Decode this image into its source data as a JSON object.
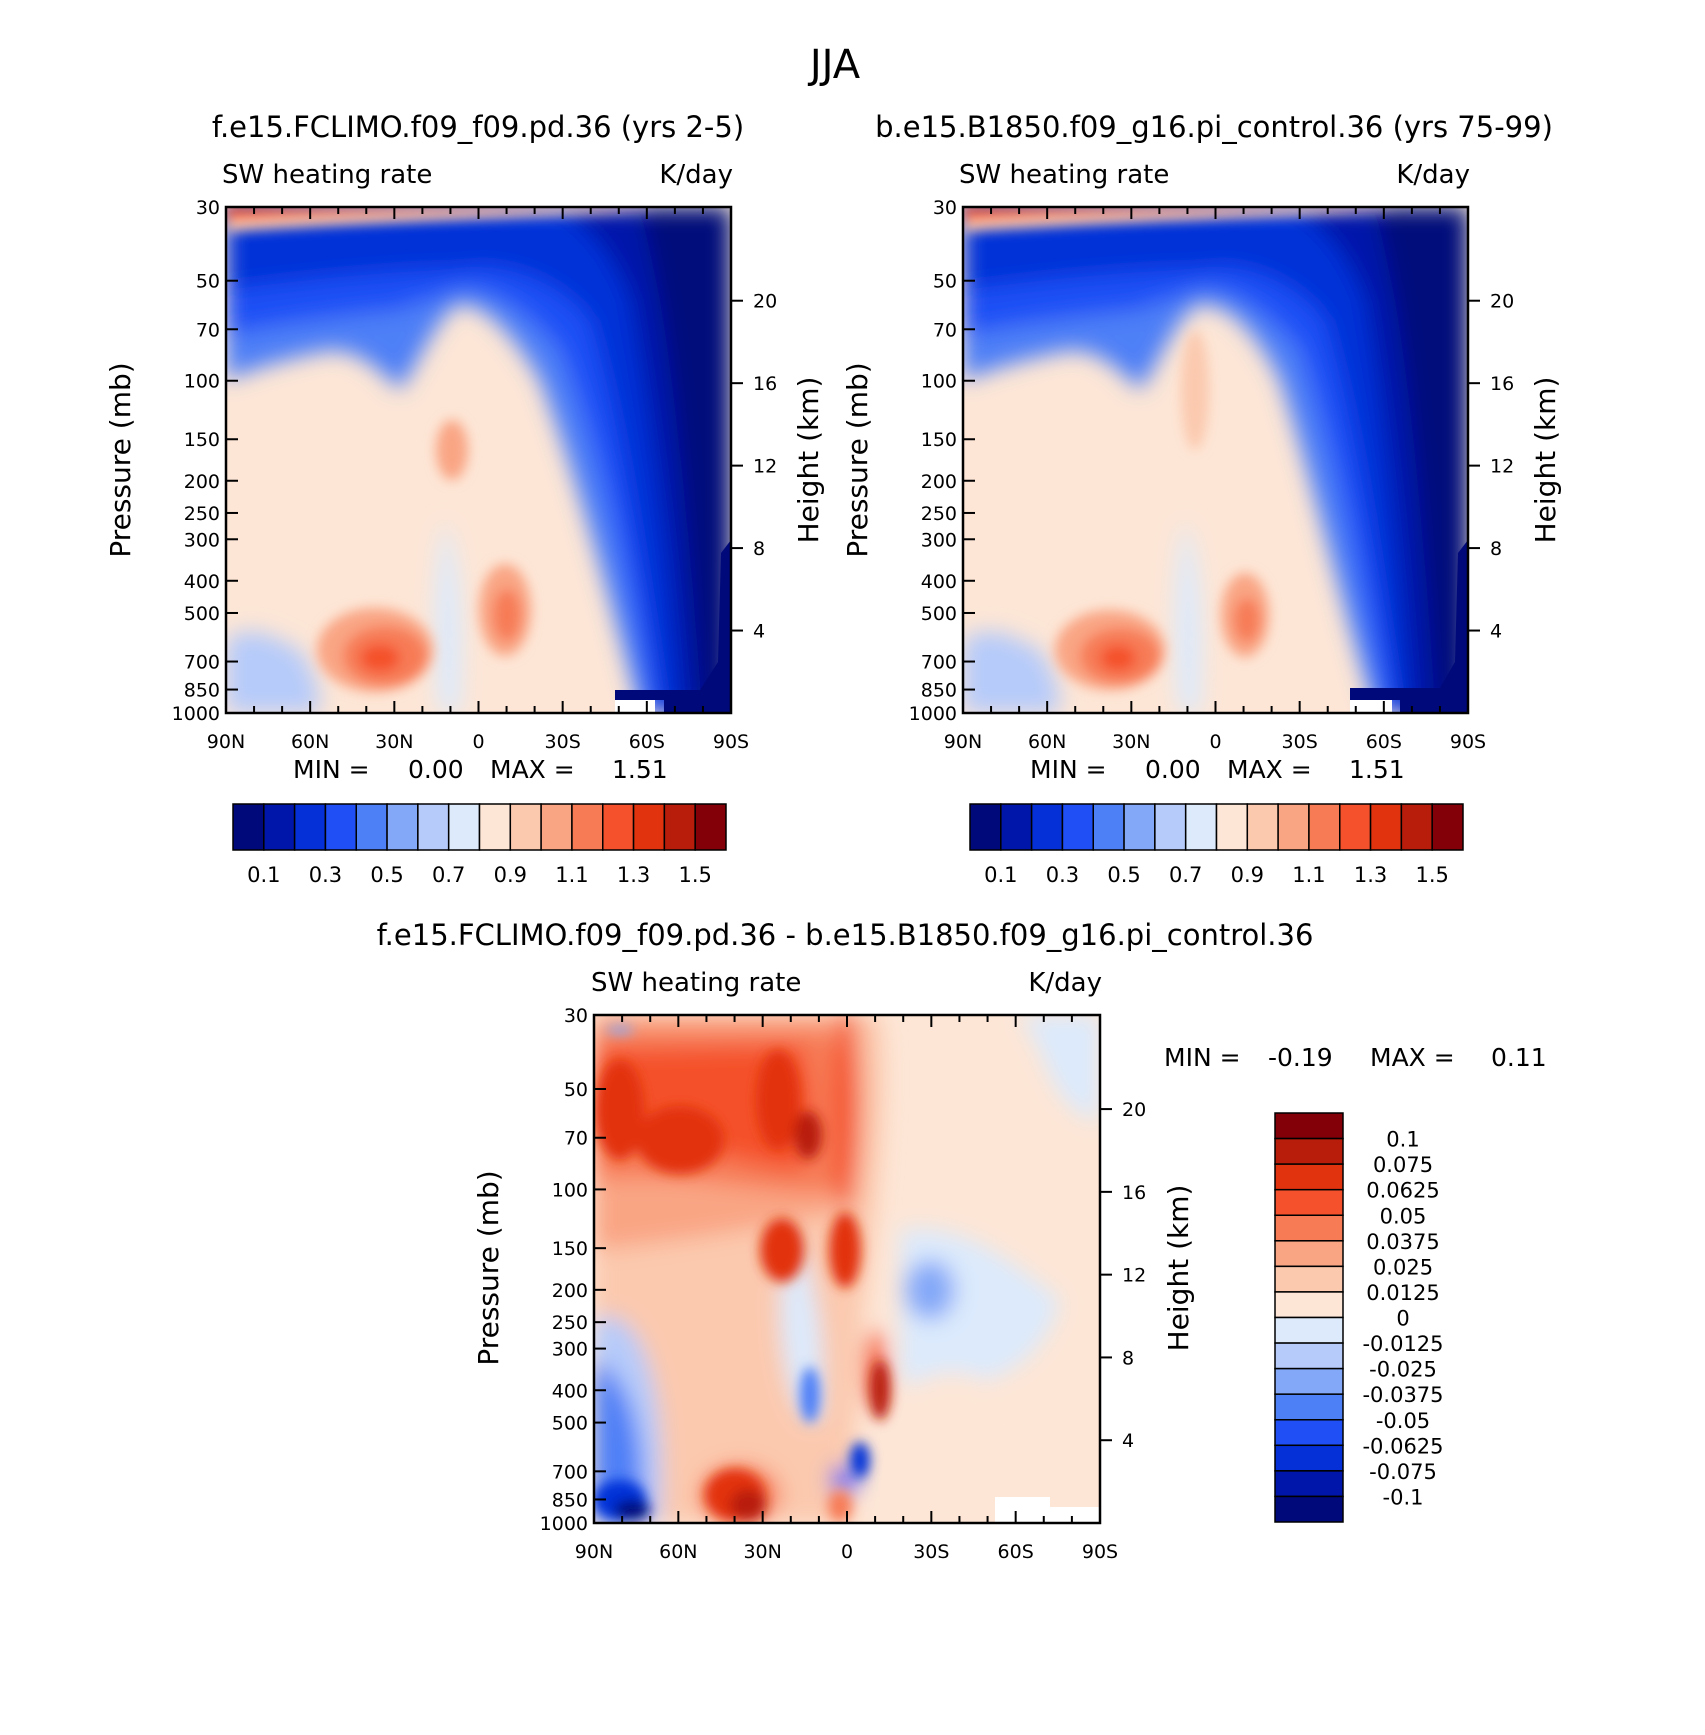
{
  "figure_title": "JJA",
  "chart_data": [
    {
      "type": "heatmap",
      "id": "p1",
      "title": "f.e15.FCLIMO.f09_f09.pd.36 (yrs 2-5)",
      "left_label": "SW heating rate",
      "right_label": "K/day",
      "xlabel": "",
      "ylabel": "Pressure (mb)",
      "y2label": "Height (km)",
      "x_ticklabels": [
        "90N",
        "60N",
        "30N",
        "0",
        "30S",
        "60S",
        "90S"
      ],
      "x_range": [
        90,
        -90
      ],
      "y_ticklabels": [
        "30",
        "50",
        "70",
        "100",
        "150",
        "200",
        "250",
        "300",
        "400",
        "500",
        "700",
        "850",
        "1000"
      ],
      "y_range_mb": [
        1000,
        30
      ],
      "y2_ticklabels": [
        "20",
        "16",
        "12",
        "8",
        "4"
      ],
      "min_label": "MIN =",
      "min_value": "0.00",
      "max_label": "MAX =",
      "max_value": "1.51",
      "colorbar_orientation": "horizontal",
      "colorbar_labels": [
        "0.1",
        "0.3",
        "0.5",
        "0.7",
        "0.9",
        "1.1",
        "1.3",
        "1.5"
      ],
      "colorbar_colors": [
        "#00097a",
        "#0016aa",
        "#0530d8",
        "#1f4ff5",
        "#4d7ff7",
        "#84a8f8",
        "#b6cbfa",
        "#dceafc",
        "#fde6d6",
        "#fbc9ae",
        "#f9a584",
        "#f77c56",
        "#f4512c",
        "#e2330f",
        "#b81d0b",
        "#830008"
      ],
      "description": "Zonal-mean latitude-pressure contour plot of shortwave heating rate"
    },
    {
      "type": "heatmap",
      "id": "p2",
      "title": "b.e15.B1850.f09_g16.pi_control.36 (yrs 75-99)",
      "left_label": "SW heating rate",
      "right_label": "K/day",
      "xlabel": "",
      "ylabel": "Pressure (mb)",
      "y2label": "Height (km)",
      "x_ticklabels": [
        "90N",
        "60N",
        "30N",
        "0",
        "30S",
        "60S",
        "90S"
      ],
      "x_range": [
        90,
        -90
      ],
      "y_ticklabels": [
        "30",
        "50",
        "70",
        "100",
        "150",
        "200",
        "250",
        "300",
        "400",
        "500",
        "700",
        "850",
        "1000"
      ],
      "y_range_mb": [
        1000,
        30
      ],
      "y2_ticklabels": [
        "20",
        "16",
        "12",
        "8",
        "4"
      ],
      "min_label": "MIN =",
      "min_value": "0.00",
      "max_label": "MAX =",
      "max_value": "1.51",
      "colorbar_orientation": "horizontal",
      "colorbar_labels": [
        "0.1",
        "0.3",
        "0.5",
        "0.7",
        "0.9",
        "1.1",
        "1.3",
        "1.5"
      ],
      "colorbar_colors": [
        "#00097a",
        "#0016aa",
        "#0530d8",
        "#1f4ff5",
        "#4d7ff7",
        "#84a8f8",
        "#b6cbfa",
        "#dceafc",
        "#fde6d6",
        "#fbc9ae",
        "#f9a584",
        "#f77c56",
        "#f4512c",
        "#e2330f",
        "#b81d0b",
        "#830008"
      ],
      "description": "Zonal-mean latitude-pressure contour plot of shortwave heating rate"
    },
    {
      "type": "heatmap",
      "id": "p3",
      "title": "f.e15.FCLIMO.f09_f09.pd.36 - b.e15.B1850.f09_g16.pi_control.36",
      "left_label": "SW heating rate",
      "right_label": "K/day",
      "xlabel": "",
      "ylabel": "Pressure (mb)",
      "y2label": "Height (km)",
      "x_ticklabels": [
        "90N",
        "60N",
        "30N",
        "0",
        "30S",
        "60S",
        "90S"
      ],
      "x_range": [
        90,
        -90
      ],
      "y_ticklabels": [
        "30",
        "50",
        "70",
        "100",
        "150",
        "200",
        "250",
        "300",
        "400",
        "500",
        "700",
        "850",
        "1000"
      ],
      "y_range_mb": [
        1000,
        30
      ],
      "y2_ticklabels": [
        "20",
        "16",
        "12",
        "8",
        "4"
      ],
      "min_label": "MIN =",
      "min_value": "-0.19",
      "max_label": "MAX =",
      "max_value": "0.11",
      "colorbar_orientation": "vertical",
      "colorbar_labels": [
        "0.1",
        "0.075",
        "0.0625",
        "0.05",
        "0.0375",
        "0.025",
        "0.0125",
        "0",
        "-0.0125",
        "-0.025",
        "-0.0375",
        "-0.05",
        "-0.0625",
        "-0.075",
        "-0.1"
      ],
      "colorbar_colors": [
        "#830008",
        "#b81d0b",
        "#e2330f",
        "#f4512c",
        "#f77c56",
        "#f9a584",
        "#fbc9ae",
        "#fde6d6",
        "#dceafc",
        "#b6cbfa",
        "#84a8f8",
        "#4d7ff7",
        "#1f4ff5",
        "#0530d8",
        "#0016aa",
        "#00097a"
      ],
      "description": "Difference of zonal-mean shortwave heating rate"
    }
  ]
}
